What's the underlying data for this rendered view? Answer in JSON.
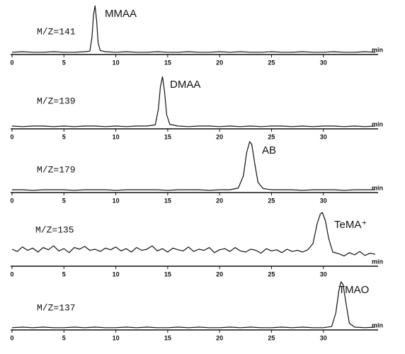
{
  "chart_data": [
    {
      "type": "line",
      "ion": "M/Z=141",
      "compound": "MMAA",
      "xlabel": "min",
      "xlim": [
        0,
        35
      ],
      "xticks": [
        0,
        5,
        10,
        15,
        20,
        25,
        30
      ],
      "ylim": [
        0,
        100
      ],
      "series": [
        {
          "color": "#111111",
          "x": [
            0,
            1,
            2,
            3,
            4,
            5,
            6,
            7,
            7.5,
            7.7,
            7.85,
            8,
            8.15,
            8.3,
            8.5,
            9,
            10,
            11,
            12,
            13,
            14,
            15,
            16,
            17,
            18,
            19,
            20,
            21,
            22,
            23,
            24,
            25,
            26,
            27,
            28,
            29,
            30,
            31,
            32,
            33,
            34,
            35
          ],
          "values": [
            4,
            5,
            4,
            4,
            5,
            4,
            4,
            5,
            6,
            30,
            70,
            86,
            60,
            20,
            7,
            5,
            4,
            5,
            4,
            4,
            5,
            4,
            4,
            5,
            4,
            4,
            5,
            4,
            5,
            4,
            4,
            5,
            4,
            4,
            5,
            4,
            4,
            5,
            4,
            4,
            5,
            4
          ]
        }
      ]
    },
    {
      "type": "line",
      "ion": "M/Z=139",
      "compound": "DMAA",
      "xlabel": "min",
      "xlim": [
        0,
        35
      ],
      "xticks": [
        0,
        5,
        10,
        15,
        20,
        25,
        30
      ],
      "ylim": [
        0,
        100
      ],
      "series": [
        {
          "color": "#111111",
          "x": [
            0,
            1,
            2,
            3,
            4,
            5,
            6,
            7,
            8,
            9,
            10,
            11,
            12,
            13,
            13.8,
            14.1,
            14.3,
            14.5,
            14.7,
            14.9,
            15.2,
            16,
            17,
            18,
            19,
            20,
            21,
            22,
            23,
            24,
            25,
            26,
            27,
            28,
            29,
            30,
            31,
            32,
            33,
            34,
            35
          ],
          "values": [
            5,
            4,
            5,
            5,
            4,
            5,
            4,
            5,
            5,
            4,
            5,
            4,
            5,
            5,
            7,
            35,
            75,
            92,
            65,
            25,
            8,
            5,
            4,
            5,
            5,
            4,
            5,
            4,
            5,
            4,
            5,
            5,
            4,
            5,
            4,
            5,
            5,
            4,
            5,
            4,
            5
          ]
        }
      ]
    },
    {
      "type": "line",
      "ion": "M/Z=179",
      "compound": "AB",
      "xlabel": "min",
      "xlim": [
        0,
        35
      ],
      "xticks": [
        0,
        5,
        10,
        15,
        20,
        25,
        30
      ],
      "ylim": [
        0,
        100
      ],
      "series": [
        {
          "color": "#111111",
          "x": [
            0,
            1,
            2,
            3,
            4,
            5,
            6,
            7,
            8,
            9,
            10,
            11,
            12,
            13,
            14,
            15,
            16,
            17,
            18,
            19,
            20,
            21,
            21.8,
            22.3,
            22.6,
            22.9,
            23.1,
            23.4,
            23.7,
            24.2,
            25,
            26,
            27,
            28,
            29,
            30,
            31,
            32,
            33,
            34,
            35
          ],
          "values": [
            5,
            5,
            4,
            5,
            5,
            5,
            4,
            5,
            5,
            5,
            4,
            5,
            5,
            5,
            5,
            4,
            5,
            5,
            5,
            4,
            5,
            5,
            8,
            30,
            70,
            90,
            85,
            50,
            18,
            7,
            5,
            5,
            5,
            4,
            5,
            5,
            5,
            4,
            5,
            5,
            5
          ]
        }
      ]
    },
    {
      "type": "line",
      "ion": "M/Z=135",
      "compound": "TeMA⁺",
      "xlabel": "min",
      "xlim": [
        0,
        35
      ],
      "xticks": [
        0,
        5,
        10,
        15,
        20,
        25,
        30
      ],
      "ylim": [
        0,
        100
      ],
      "series": [
        {
          "color": "#111111",
          "x": [
            0,
            0.5,
            1,
            1.5,
            2,
            2.5,
            3,
            3.5,
            4,
            4.5,
            5,
            5.5,
            6,
            6.5,
            7,
            7.5,
            8,
            8.5,
            9,
            9.5,
            10,
            10.5,
            11,
            11.5,
            12,
            12.5,
            13,
            13.5,
            14,
            14.5,
            15,
            15.5,
            16,
            16.5,
            17,
            17.5,
            18,
            18.5,
            19,
            19.5,
            20,
            20.5,
            21,
            21.5,
            22,
            22.5,
            23,
            23.5,
            24,
            24.5,
            25,
            25.5,
            26,
            26.5,
            27,
            27.5,
            28,
            28.5,
            29,
            29.4,
            29.7,
            29.9,
            30.2,
            30.5,
            30.9,
            31.5,
            32,
            32.5,
            33,
            33.5,
            34,
            34.5,
            35
          ],
          "values": [
            30,
            26,
            34,
            28,
            32,
            25,
            33,
            29,
            36,
            27,
            31,
            24,
            33,
            30,
            35,
            28,
            30,
            26,
            32,
            29,
            34,
            27,
            31,
            25,
            33,
            28,
            30,
            36,
            27,
            31,
            25,
            32,
            29,
            27,
            34,
            26,
            30,
            28,
            33,
            24,
            29,
            31,
            26,
            33,
            27,
            25,
            30,
            28,
            23,
            31,
            27,
            29,
            24,
            30,
            26,
            28,
            25,
            29,
            40,
            75,
            92,
            95,
            80,
            50,
            25,
            22,
            18,
            24,
            20,
            26,
            19,
            23,
            21
          ]
        }
      ]
    },
    {
      "type": "line",
      "ion": "M/Z=137",
      "compound": "TMAO",
      "xlabel": "min",
      "xlim": [
        0,
        35
      ],
      "xticks": [
        0,
        5,
        10,
        15,
        20,
        25,
        30
      ],
      "ylim": [
        0,
        100
      ],
      "series": [
        {
          "color": "#111111",
          "x": [
            0,
            1,
            2,
            3,
            4,
            5,
            6,
            7,
            8,
            9,
            10,
            11,
            12,
            13,
            14,
            15,
            16,
            17,
            18,
            19,
            20,
            21,
            22,
            23,
            24,
            25,
            26,
            27,
            28,
            29,
            30,
            30.8,
            31.2,
            31.5,
            31.7,
            31.9,
            32.2,
            32.5,
            33,
            34,
            35
          ],
          "values": [
            4,
            5,
            4,
            5,
            4,
            4,
            5,
            4,
            5,
            4,
            4,
            5,
            4,
            5,
            4,
            4,
            5,
            4,
            5,
            4,
            4,
            5,
            4,
            5,
            4,
            4,
            5,
            4,
            5,
            4,
            4,
            6,
            30,
            70,
            85,
            80,
            45,
            12,
            5,
            4,
            5
          ]
        }
      ]
    }
  ]
}
